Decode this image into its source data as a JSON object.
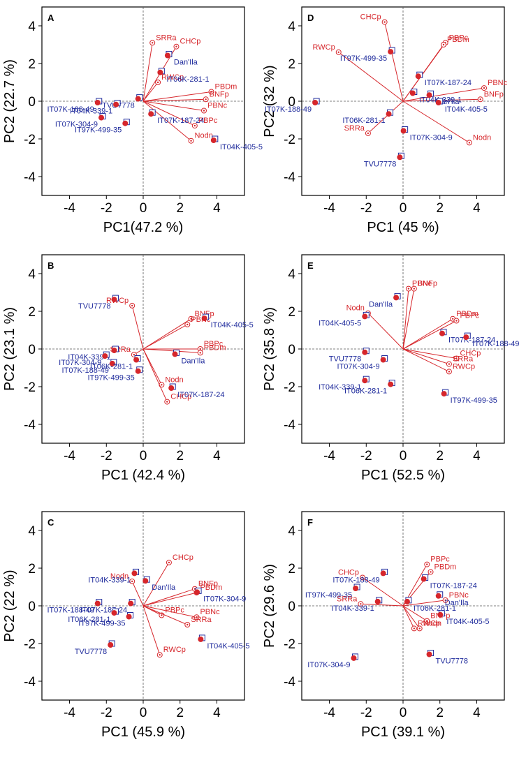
{
  "figure": {
    "colors": {
      "variable": "#d6262b",
      "genotype": "#1f2b9c",
      "axis": "#000000",
      "reference": "#555555"
    }
  },
  "chart_data": [
    {
      "type": "scatter",
      "panel": "A",
      "xlabel": "PC1(47.2 %)",
      "ylabel": "PC2 (22.7 %)",
      "xlim": [
        -5.5,
        5.5
      ],
      "ylim": [
        -5,
        5
      ],
      "xticks": [
        -4,
        -2,
        0,
        2,
        4
      ],
      "yticks": [
        -4,
        -2,
        0,
        2,
        4
      ],
      "variables": [
        {
          "name": "SRRa",
          "x": 0.5,
          "y": 3.1
        },
        {
          "name": "CHCp",
          "x": 1.8,
          "y": 2.9
        },
        {
          "name": "RWCp",
          "x": 0.8,
          "y": 1.0
        },
        {
          "name": "PBDm",
          "x": 3.7,
          "y": 0.5
        },
        {
          "name": "BNFp",
          "x": 3.4,
          "y": 0.1
        },
        {
          "name": "PBNc",
          "x": 3.3,
          "y": -0.5
        },
        {
          "name": "PBPc",
          "x": 2.8,
          "y": -1.3
        },
        {
          "name": "Nodn",
          "x": 2.6,
          "y": -2.1
        }
      ],
      "genotypes": [
        {
          "name": "Dan'Ila",
          "x": 1.4,
          "y": 2.5
        },
        {
          "name": "IT06K-281-1",
          "x": 1.0,
          "y": 1.6
        },
        {
          "name": "TVU7778",
          "x": -0.2,
          "y": 0.2
        },
        {
          "name": "IT07K-188-49",
          "x": -2.4,
          "y": 0.0
        },
        {
          "name": "IT04K-339-1",
          "x": -1.4,
          "y": -0.1
        },
        {
          "name": "IT07K-304-9",
          "x": -2.2,
          "y": -0.8
        },
        {
          "name": "IT97K-499-35",
          "x": -0.9,
          "y": -1.1
        },
        {
          "name": "IT07K-187-24",
          "x": 0.5,
          "y": -0.6
        },
        {
          "name": "IT04K-405-5",
          "x": 3.9,
          "y": -2.0
        }
      ]
    },
    {
      "type": "scatter",
      "panel": "B",
      "xlabel": "PC1 (42.4 %)",
      "ylabel": "PC2 (23.1 %)",
      "xlim": [
        -5.5,
        5.5
      ],
      "ylim": [
        -5,
        5
      ],
      "xticks": [
        -4,
        -2,
        0,
        2,
        4
      ],
      "yticks": [
        -4,
        -2,
        0,
        2,
        4
      ],
      "variables": [
        {
          "name": "RWCp",
          "x": -0.6,
          "y": 2.3
        },
        {
          "name": "BNFp",
          "x": 2.6,
          "y": 1.6
        },
        {
          "name": "PBNc",
          "x": 2.4,
          "y": 1.3
        },
        {
          "name": "PBPc",
          "x": 3.1,
          "y": 0.0
        },
        {
          "name": "PBDm",
          "x": 3.1,
          "y": -0.2
        },
        {
          "name": "SRRa",
          "x": -0.5,
          "y": -0.3
        },
        {
          "name": "Nodn",
          "x": 1.0,
          "y": -1.9
        },
        {
          "name": "CHCp",
          "x": 1.3,
          "y": -2.8
        }
      ],
      "genotypes": [
        {
          "name": "TVU7778",
          "x": -1.5,
          "y": 2.7
        },
        {
          "name": "IT04K-405-5",
          "x": 3.4,
          "y": 1.7
        },
        {
          "name": "IT04K-339-1",
          "x": -1.5,
          "y": 0.0
        },
        {
          "name": "IT07K-304-9",
          "x": -2.0,
          "y": -0.3
        },
        {
          "name": "IT07K-188-49",
          "x": -1.6,
          "y": -0.7
        },
        {
          "name": "IT06K-281-1",
          "x": -0.3,
          "y": -0.5
        },
        {
          "name": "Dan'Ila",
          "x": 1.8,
          "y": -0.2
        },
        {
          "name": "IT97K-499-35",
          "x": -0.2,
          "y": -1.1
        },
        {
          "name": "IT07K-187-24",
          "x": 1.6,
          "y": -2.0
        }
      ]
    },
    {
      "type": "scatter",
      "panel": "C",
      "xlabel": "PC1 (45.9 %)",
      "ylabel": "PC2 (22 %)",
      "xlim": [
        -5.5,
        5.5
      ],
      "ylim": [
        -5,
        5
      ],
      "xticks": [
        -4,
        -2,
        0,
        2,
        4
      ],
      "yticks": [
        -4,
        -2,
        0,
        2,
        4
      ],
      "variables": [
        {
          "name": "CHCp",
          "x": 1.4,
          "y": 2.3
        },
        {
          "name": "Nodn",
          "x": -0.6,
          "y": 1.3
        },
        {
          "name": "BNFp",
          "x": 2.8,
          "y": 0.9
        },
        {
          "name": "PBDm",
          "x": 2.9,
          "y": 0.7
        },
        {
          "name": "PBPc",
          "x": 1.0,
          "y": -0.5
        },
        {
          "name": "PBNc",
          "x": 2.9,
          "y": -0.6
        },
        {
          "name": "SRRa",
          "x": 2.4,
          "y": -1.0
        },
        {
          "name": "RWCp",
          "x": 0.9,
          "y": -2.6
        }
      ],
      "genotypes": [
        {
          "name": "IT04K-339-1",
          "x": -0.4,
          "y": 1.8
        },
        {
          "name": "Dan'Ila",
          "x": 0.2,
          "y": 1.4
        },
        {
          "name": "IT07K-304-9",
          "x": 3.0,
          "y": 0.8
        },
        {
          "name": "IT07K-188-49",
          "x": -2.4,
          "y": 0.2
        },
        {
          "name": "IT07K-187-24",
          "x": -0.6,
          "y": 0.2
        },
        {
          "name": "IT06K-281-1",
          "x": -1.5,
          "y": -0.3
        },
        {
          "name": "IT97K-499-35",
          "x": -0.7,
          "y": -0.5
        },
        {
          "name": "IT04K-405-5",
          "x": 3.2,
          "y": -1.7
        },
        {
          "name": "TVU7778",
          "x": -1.7,
          "y": -2.0
        }
      ]
    },
    {
      "type": "scatter",
      "panel": "D",
      "xlabel": "PC1 (45 %)",
      "ylabel": "PC2 (32 %)",
      "xlim": [
        -5.5,
        5.5
      ],
      "ylim": [
        -5,
        5
      ],
      "xticks": [
        -4,
        -2,
        0,
        2,
        4
      ],
      "yticks": [
        -4,
        -2,
        0,
        2,
        4
      ],
      "variables": [
        {
          "name": "CHCp",
          "x": -1.0,
          "y": 4.2
        },
        {
          "name": "PBPc",
          "x": 2.3,
          "y": 3.1
        },
        {
          "name": "PBDm",
          "x": 2.2,
          "y": 3.0
        },
        {
          "name": "RWCp",
          "x": -3.5,
          "y": 2.6
        },
        {
          "name": "PBNc",
          "x": 4.4,
          "y": 0.7
        },
        {
          "name": "BNFp",
          "x": 4.2,
          "y": 0.1
        },
        {
          "name": "SRRa",
          "x": -1.9,
          "y": -1.7
        },
        {
          "name": "Nodn",
          "x": 3.6,
          "y": -2.2
        }
      ],
      "genotypes": [
        {
          "name": "IT97K-499-35",
          "x": -0.6,
          "y": 2.7
        },
        {
          "name": "IT07K-187-24",
          "x": 0.9,
          "y": 1.4
        },
        {
          "name": "IT04K-339-1",
          "x": 0.6,
          "y": 0.5
        },
        {
          "name": "Dan'Ila",
          "x": 1.5,
          "y": 0.4
        },
        {
          "name": "IT04K-405-5",
          "x": 2.0,
          "y": 0.0
        },
        {
          "name": "IT07K-188-49",
          "x": -4.7,
          "y": 0.0
        },
        {
          "name": "IT06K-281-1",
          "x": -0.7,
          "y": -0.6
        },
        {
          "name": "IT07K-304-9",
          "x": 0.1,
          "y": -1.5
        },
        {
          "name": "TVU7778",
          "x": -0.1,
          "y": -2.9
        }
      ]
    },
    {
      "type": "scatter",
      "panel": "E",
      "xlabel": "PC1 (52.5 %)",
      "ylabel": "PC2 (35.8 %)",
      "xlim": [
        -5.5,
        5.5
      ],
      "ylim": [
        -5,
        5
      ],
      "xticks": [
        -4,
        -2,
        0,
        2,
        4
      ],
      "yticks": [
        -4,
        -2,
        0,
        2,
        4
      ],
      "variables": [
        {
          "name": "PBNc",
          "x": 0.3,
          "y": 3.2
        },
        {
          "name": "BNFp",
          "x": 0.6,
          "y": 3.2
        },
        {
          "name": "Nodn",
          "x": -1.9,
          "y": 1.9
        },
        {
          "name": "PBDm",
          "x": 2.7,
          "y": 1.6
        },
        {
          "name": "PBPc",
          "x": 2.9,
          "y": 1.5
        },
        {
          "name": "CHCp",
          "x": 2.9,
          "y": -0.5
        },
        {
          "name": "SRRa",
          "x": 2.5,
          "y": -0.8
        },
        {
          "name": "RWCp",
          "x": 2.5,
          "y": -1.2
        }
      ],
      "genotypes": [
        {
          "name": "Dan'Ila",
          "x": -0.3,
          "y": 2.8
        },
        {
          "name": "IT04K-405-5",
          "x": -2.0,
          "y": 1.8
        },
        {
          "name": "IT07K-187-24",
          "x": 2.2,
          "y": 0.9
        },
        {
          "name": "IT07K-188-49",
          "x": 3.5,
          "y": 0.7
        },
        {
          "name": "TVU7778",
          "x": -2.0,
          "y": -0.1
        },
        {
          "name": "IT07K-304-9",
          "x": -1.0,
          "y": -0.5
        },
        {
          "name": "IT04K-339-1",
          "x": -2.0,
          "y": -1.6
        },
        {
          "name": "IT06K-281-1",
          "x": -0.6,
          "y": -1.8
        },
        {
          "name": "IT97K-499-35",
          "x": 2.3,
          "y": -2.3
        }
      ]
    },
    {
      "type": "scatter",
      "panel": "F",
      "xlabel": "PC1 (39.1 %)",
      "ylabel": "PC2 (29.6 %)",
      "xlim": [
        -5.5,
        5.5
      ],
      "ylim": [
        -5,
        5
      ],
      "xticks": [
        -4,
        -2,
        0,
        2,
        4
      ],
      "yticks": [
        -4,
        -2,
        0,
        2,
        4
      ],
      "variables": [
        {
          "name": "PBPc",
          "x": 1.3,
          "y": 2.2
        },
        {
          "name": "PBDm",
          "x": 1.5,
          "y": 1.8
        },
        {
          "name": "CHCp",
          "x": -2.2,
          "y": 1.5
        },
        {
          "name": "PBNc",
          "x": 2.3,
          "y": 0.3
        },
        {
          "name": "SRRa",
          "x": -2.3,
          "y": 0.1
        },
        {
          "name": "BNFp",
          "x": 1.3,
          "y": -0.8
        },
        {
          "name": "Nodn",
          "x": 0.9,
          "y": -1.2
        },
        {
          "name": "RWCp",
          "x": 0.6,
          "y": -1.2
        }
      ],
      "genotypes": [
        {
          "name": "IT07K-188-49",
          "x": -1.0,
          "y": 1.8
        },
        {
          "name": "IT07K-187-24",
          "x": 1.2,
          "y": 1.5
        },
        {
          "name": "IT97K-499-35",
          "x": -2.5,
          "y": 1.0
        },
        {
          "name": "Dan'Ila",
          "x": 2.0,
          "y": 0.6
        },
        {
          "name": "IT04K-339-1",
          "x": -1.3,
          "y": 0.3
        },
        {
          "name": "IT06K-281-1",
          "x": 0.3,
          "y": 0.3
        },
        {
          "name": "IT04K-405-5",
          "x": 2.1,
          "y": -0.4
        },
        {
          "name": "IT07K-304-9",
          "x": -2.6,
          "y": -2.7
        },
        {
          "name": "TVU7778",
          "x": 1.5,
          "y": -2.5
        }
      ]
    }
  ]
}
